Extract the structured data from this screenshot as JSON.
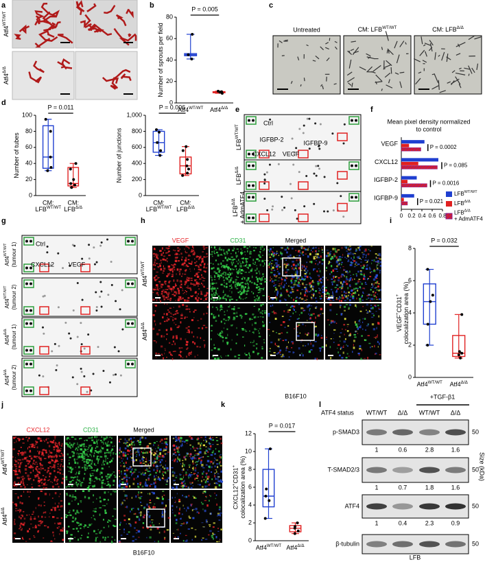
{
  "panel_labels": [
    "a",
    "b",
    "c",
    "d",
    "e",
    "f",
    "g",
    "h",
    "i",
    "j",
    "k",
    "l"
  ],
  "panel_a": {
    "row_labels": [
      [
        "Atf4",
        {
          "sup": "WT/WT"
        }
      ],
      [
        "Atf4",
        {
          "sup": "Δ/Δ"
        }
      ]
    ]
  },
  "panel_c": {
    "titles": [
      "Untreated",
      [
        "CM: LFB",
        {
          "sup": "WT/WT"
        }
      ],
      [
        "CM: LFB",
        {
          "sup": "Δ/Δ"
        }
      ]
    ]
  },
  "panel_e": {
    "spot_labels": [
      "Ctrl",
      "IGFBP-2",
      "IGFBP-9",
      "CXCL12",
      "VEGF"
    ],
    "row_labels": [
      [
        "LFB",
        {
          "sup": "WT/WT"
        }
      ],
      [
        "LFB",
        {
          "sup": "Δ/Δ"
        }
      ],
      {
        "lines": [
          [
            "LFB",
            {
              "sup": "Δ/Δ"
            }
          ],
          "+ AdmATF4"
        ]
      }
    ]
  },
  "panel_g": {
    "spot_labels": [
      "Ctrl",
      "CXCL12",
      "VEGF"
    ],
    "row_labels": [
      {
        "lines": [
          [
            "Atf4",
            {
              "sup": "WT/WT"
            }
          ],
          "(tumour 1)"
        ]
      },
      {
        "lines": [
          [
            "Atf4",
            {
              "sup": "WT/WT"
            }
          ],
          "(tumour 2)"
        ]
      },
      {
        "lines": [
          [
            "Atf4",
            {
              "sup": "Δ/Δ"
            }
          ],
          "(tumour 1)"
        ]
      },
      {
        "lines": [
          [
            "Atf4",
            {
              "sup": "Δ/Δ"
            }
          ],
          "(tumour 2)"
        ]
      }
    ]
  },
  "panel_h": {
    "column_titles": [
      "VEGF",
      "CD31",
      "Merged"
    ],
    "column_colors": [
      "#e8262b",
      "#2fb34a",
      "#000000"
    ],
    "row_labels": [
      [
        "Atf4",
        {
          "sup": "WT/WT"
        }
      ],
      [
        "Atf4",
        {
          "sup": "Δ/Δ"
        }
      ]
    ],
    "footer": "B16F10"
  },
  "panel_j": {
    "column_titles": [
      "CXCL12",
      "CD31",
      "Merged"
    ],
    "column_colors": [
      "#e8262b",
      "#2fb34a",
      "#000000"
    ],
    "row_labels": [
      [
        "Atf4",
        {
          "sup": "WT/WT"
        }
      ],
      [
        "Atf4",
        {
          "sup": "Δ/Δ"
        }
      ]
    ],
    "footer": "B16F10"
  },
  "panel_l": {
    "treatment": "+TGF-β1",
    "status_label": "ATF4 status",
    "columns": [
      "WT/WT",
      "Δ/Δ",
      "WT/WT",
      "Δ/Δ"
    ],
    "rows": [
      "p-SMAD3",
      "T-SMAD2/3",
      "ATF4",
      "β-tubulin"
    ],
    "quantification": [
      [
        1,
        0.6,
        2.8,
        1.6
      ],
      [
        1,
        0.7,
        1.8,
        1.6
      ],
      [
        1,
        0.4,
        2.3,
        0.9
      ]
    ],
    "size_markers": [
      50,
      50,
      50,
      50
    ],
    "size_label": "Size (kDa)",
    "footer": "LFB"
  },
  "chart_data": [
    {
      "type": "box",
      "ylabel": "Number of sprouts per field",
      "categories": [
        [
          "Atf4",
          {
            "sup": "WT/WT"
          }
        ],
        [
          "Atf4",
          {
            "sup": "Δ/Δ"
          }
        ]
      ],
      "ylim": [
        0,
        80
      ],
      "yticks": [
        0,
        20,
        40,
        60,
        80
      ],
      "annotation": "P = 0.005",
      "boxes": [
        {
          "min": 41,
          "q1": 44,
          "median": 45,
          "q3": 46,
          "max": 64,
          "color": "#1f3fd0",
          "points": [
            41,
            45,
            64
          ]
        },
        {
          "min": 9,
          "q1": 9.5,
          "median": 10,
          "q3": 10.5,
          "max": 11,
          "color": "#e02020",
          "points": [
            9,
            10,
            11,
            10.5
          ]
        }
      ]
    },
    {
      "type": "box",
      "ylabel": "Number of tubes",
      "categories": [
        {
          "lines": [
            "CM:",
            [
              "LFB",
              {
                "sup": "WT/WT"
              }
            ]
          ]
        },
        {
          "lines": [
            "CM:",
            [
              "LFB",
              {
                "sup": "Δ/Δ"
              }
            ]
          ]
        }
      ],
      "ylim": [
        0,
        100
      ],
      "yticks": [
        0,
        20,
        40,
        60,
        80,
        100
      ],
      "annotation": "P = 0.011",
      "boxes": [
        {
          "min": 31,
          "q1": 34,
          "median": 48,
          "q3": 87,
          "max": 95,
          "color": "#1f3fd0",
          "points": [
            31,
            35,
            48,
            80,
            95
          ]
        },
        {
          "min": 10,
          "q1": 12,
          "median": 15,
          "q3": 35,
          "max": 40,
          "color": "#e02020",
          "points": [
            10,
            13,
            15,
            20,
            33,
            40
          ]
        }
      ]
    },
    {
      "type": "box",
      "ylabel": "Number of junctions",
      "categories": [
        {
          "lines": [
            "CM:",
            [
              "LFB",
              {
                "sup": "WT/WT"
              }
            ]
          ]
        },
        {
          "lines": [
            "CM:",
            [
              "LFB",
              {
                "sup": "Δ/Δ"
              }
            ]
          ]
        }
      ],
      "ylim": [
        0,
        1000
      ],
      "yticks": [
        0,
        200,
        400,
        600,
        800,
        {
          "value": 1000,
          "label": "1,000"
        }
      ],
      "annotation": "P = 0.006",
      "boxes": [
        {
          "min": 500,
          "q1": 540,
          "median": 660,
          "q3": 800,
          "max": 820,
          "color": "#1f3fd0",
          "points": [
            500,
            560,
            660,
            790,
            820
          ]
        },
        {
          "min": 250,
          "q1": 270,
          "median": 370,
          "q3": 480,
          "max": 610,
          "color": "#e02020",
          "points": [
            250,
            280,
            330,
            370,
            450,
            560,
            610
          ]
        }
      ]
    },
    {
      "type": "hbar",
      "title_lines": [
        "Mean pixel density normalized",
        "to control"
      ],
      "categories": [
        "VEGF",
        "CXCL12",
        "IGFBP-2",
        "IGFBP-9"
      ],
      "xlim": [
        0,
        0.8
      ],
      "xticks": [
        0,
        0.2,
        0.4,
        0.6,
        0.8
      ],
      "series": [
        {
          "name": [
            "LFB",
            {
              "sup": "WT/WT"
            }
          ],
          "color": "#1f3fd0",
          "values": [
            0.45,
            0.72,
            0.3,
            0.25
          ]
        },
        {
          "name": [
            "LFB",
            {
              "sup": "Δ/Δ"
            }
          ],
          "color": "#e02020",
          "values": [
            0.15,
            0.33,
            0.12,
            0.05
          ]
        },
        {
          "name": {
            "lines": [
              [
                "LFB",
                {
                  "sup": "Δ/Δ"
                }
              ],
              "+ AdmATF4"
            ]
          },
          "color": "#8a1a8a",
          "pattern": "hatch",
          "values": [
            0.38,
            0.7,
            0.5,
            0.12
          ]
        }
      ],
      "annotations": [
        "P = 0.0002",
        "P = 0.085",
        "P = 0.0016",
        "P = 0.021"
      ],
      "legend": "lower right"
    },
    {
      "type": "box",
      "ylabel": {
        "lines": [
          [
            "VEGF",
            {
              "sup": "+"
            },
            "CD31",
            {
              "sup": "+"
            }
          ],
          "colocalization area (%)"
        ]
      },
      "categories": [
        [
          "Atf4",
          {
            "sup": "WT/WT"
          }
        ],
        [
          "Atf4",
          {
            "sup": "Δ/Δ"
          }
        ]
      ],
      "ylim": [
        0,
        8
      ],
      "yticks": [
        0,
        2,
        4,
        6,
        8
      ],
      "annotation": "P = 0.032",
      "boxes": [
        {
          "min": 2,
          "q1": 3.3,
          "median": 4.7,
          "q3": 5.8,
          "max": 6.7,
          "color": "#1f3fd0",
          "points": [
            2,
            3.3,
            4.7,
            5.1,
            6.7
          ]
        },
        {
          "min": 1.2,
          "q1": 1.3,
          "median": 1.5,
          "q3": 2.6,
          "max": 3.9,
          "color": "#e02020",
          "points": [
            1.2,
            1.4,
            1.5,
            1.6,
            3.9
          ]
        }
      ]
    },
    {
      "type": "box",
      "ylabel": {
        "lines": [
          [
            "CXCL12",
            {
              "sup": "+"
            },
            "CD31",
            {
              "sup": "+"
            }
          ],
          "colocalization area (%)"
        ]
      },
      "categories": [
        [
          "Atf4",
          {
            "sup": "WT/WT"
          }
        ],
        [
          "Atf4",
          {
            "sup": "Δ/Δ"
          }
        ]
      ],
      "ylim": [
        0,
        12
      ],
      "yticks": [
        0,
        2,
        4,
        6,
        8,
        10,
        12
      ],
      "annotation": "P = 0.017",
      "boxes": [
        {
          "min": 2.5,
          "q1": 3.8,
          "median": 5,
          "q3": 8,
          "max": 10.3,
          "color": "#1f3fd0",
          "points": [
            2.5,
            4.5,
            5,
            5.8,
            10.3
          ]
        },
        {
          "min": 0.8,
          "q1": 1,
          "median": 1.4,
          "q3": 1.7,
          "max": 2,
          "color": "#e02020",
          "points": [
            0.8,
            1.1,
            1.4,
            1.6,
            2
          ]
        }
      ]
    }
  ]
}
